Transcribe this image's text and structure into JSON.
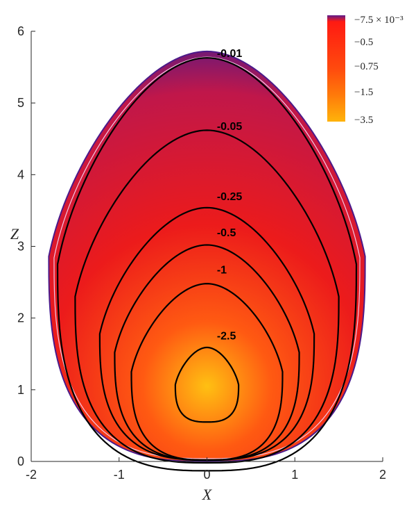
{
  "chart_data": {
    "type": "contour",
    "title": "",
    "xlabel": "X",
    "ylabel": "Z",
    "xlim": [
      -2,
      2
    ],
    "ylim": [
      0,
      6
    ],
    "x_ticks": [
      "-2",
      "-1",
      "0",
      "1",
      "2"
    ],
    "y_ticks": [
      "0",
      "1",
      "2",
      "3",
      "4",
      "5",
      "6"
    ],
    "grid": false,
    "region": {
      "boundary_top_z": 5.72,
      "boundary_half_width_at_base": 1.8,
      "peak_value_near_center": [
        0,
        1.05
      ]
    },
    "contours": [
      {
        "level": -0.01,
        "label": "-0.01",
        "center": [
          0,
          2.75
        ],
        "half_width": 1.7,
        "half_height": 2.88,
        "label_at": [
          0.05,
          5.72
        ]
      },
      {
        "level": -0.05,
        "label": "-0.05",
        "center": [
          0,
          2.3
        ],
        "half_width": 1.5,
        "half_height": 2.32,
        "label_at": [
          0.05,
          4.7
        ]
      },
      {
        "level": -0.25,
        "label": "-0.25",
        "center": [
          0,
          1.78
        ],
        "half_width": 1.22,
        "half_height": 1.76,
        "label_at": [
          0.05,
          3.72
        ]
      },
      {
        "level": -0.5,
        "label": "-0.5",
        "center": [
          0,
          1.52
        ],
        "half_width": 1.05,
        "half_height": 1.5,
        "label_at": [
          0.05,
          3.22
        ]
      },
      {
        "level": -1,
        "label": "-1",
        "center": [
          0,
          1.25
        ],
        "half_width": 0.86,
        "half_height": 1.23,
        "label_at": [
          0.05,
          2.7
        ]
      },
      {
        "level": -2.5,
        "label": "-2.5",
        "center": [
          0,
          1.07
        ],
        "half_width": 0.36,
        "half_height": 0.52,
        "label_at": [
          0.05,
          1.78
        ]
      }
    ],
    "colorbar": {
      "labels": [
        "−7.5 × 10⁻³",
        "−0.5",
        "−0.75",
        "−1.5",
        "−3.5"
      ],
      "colors": [
        "#5e1c8c",
        "#ff1a12",
        "#ff4a0e",
        "#ff7a0a",
        "#ffb30a"
      ],
      "placement": "top-right"
    },
    "colormap": {
      "edge": "#4b1a8a",
      "outer": "#c0174a",
      "mid": "#ec1b1b",
      "inner": "#ff5a12",
      "core": "#ffc012"
    }
  }
}
